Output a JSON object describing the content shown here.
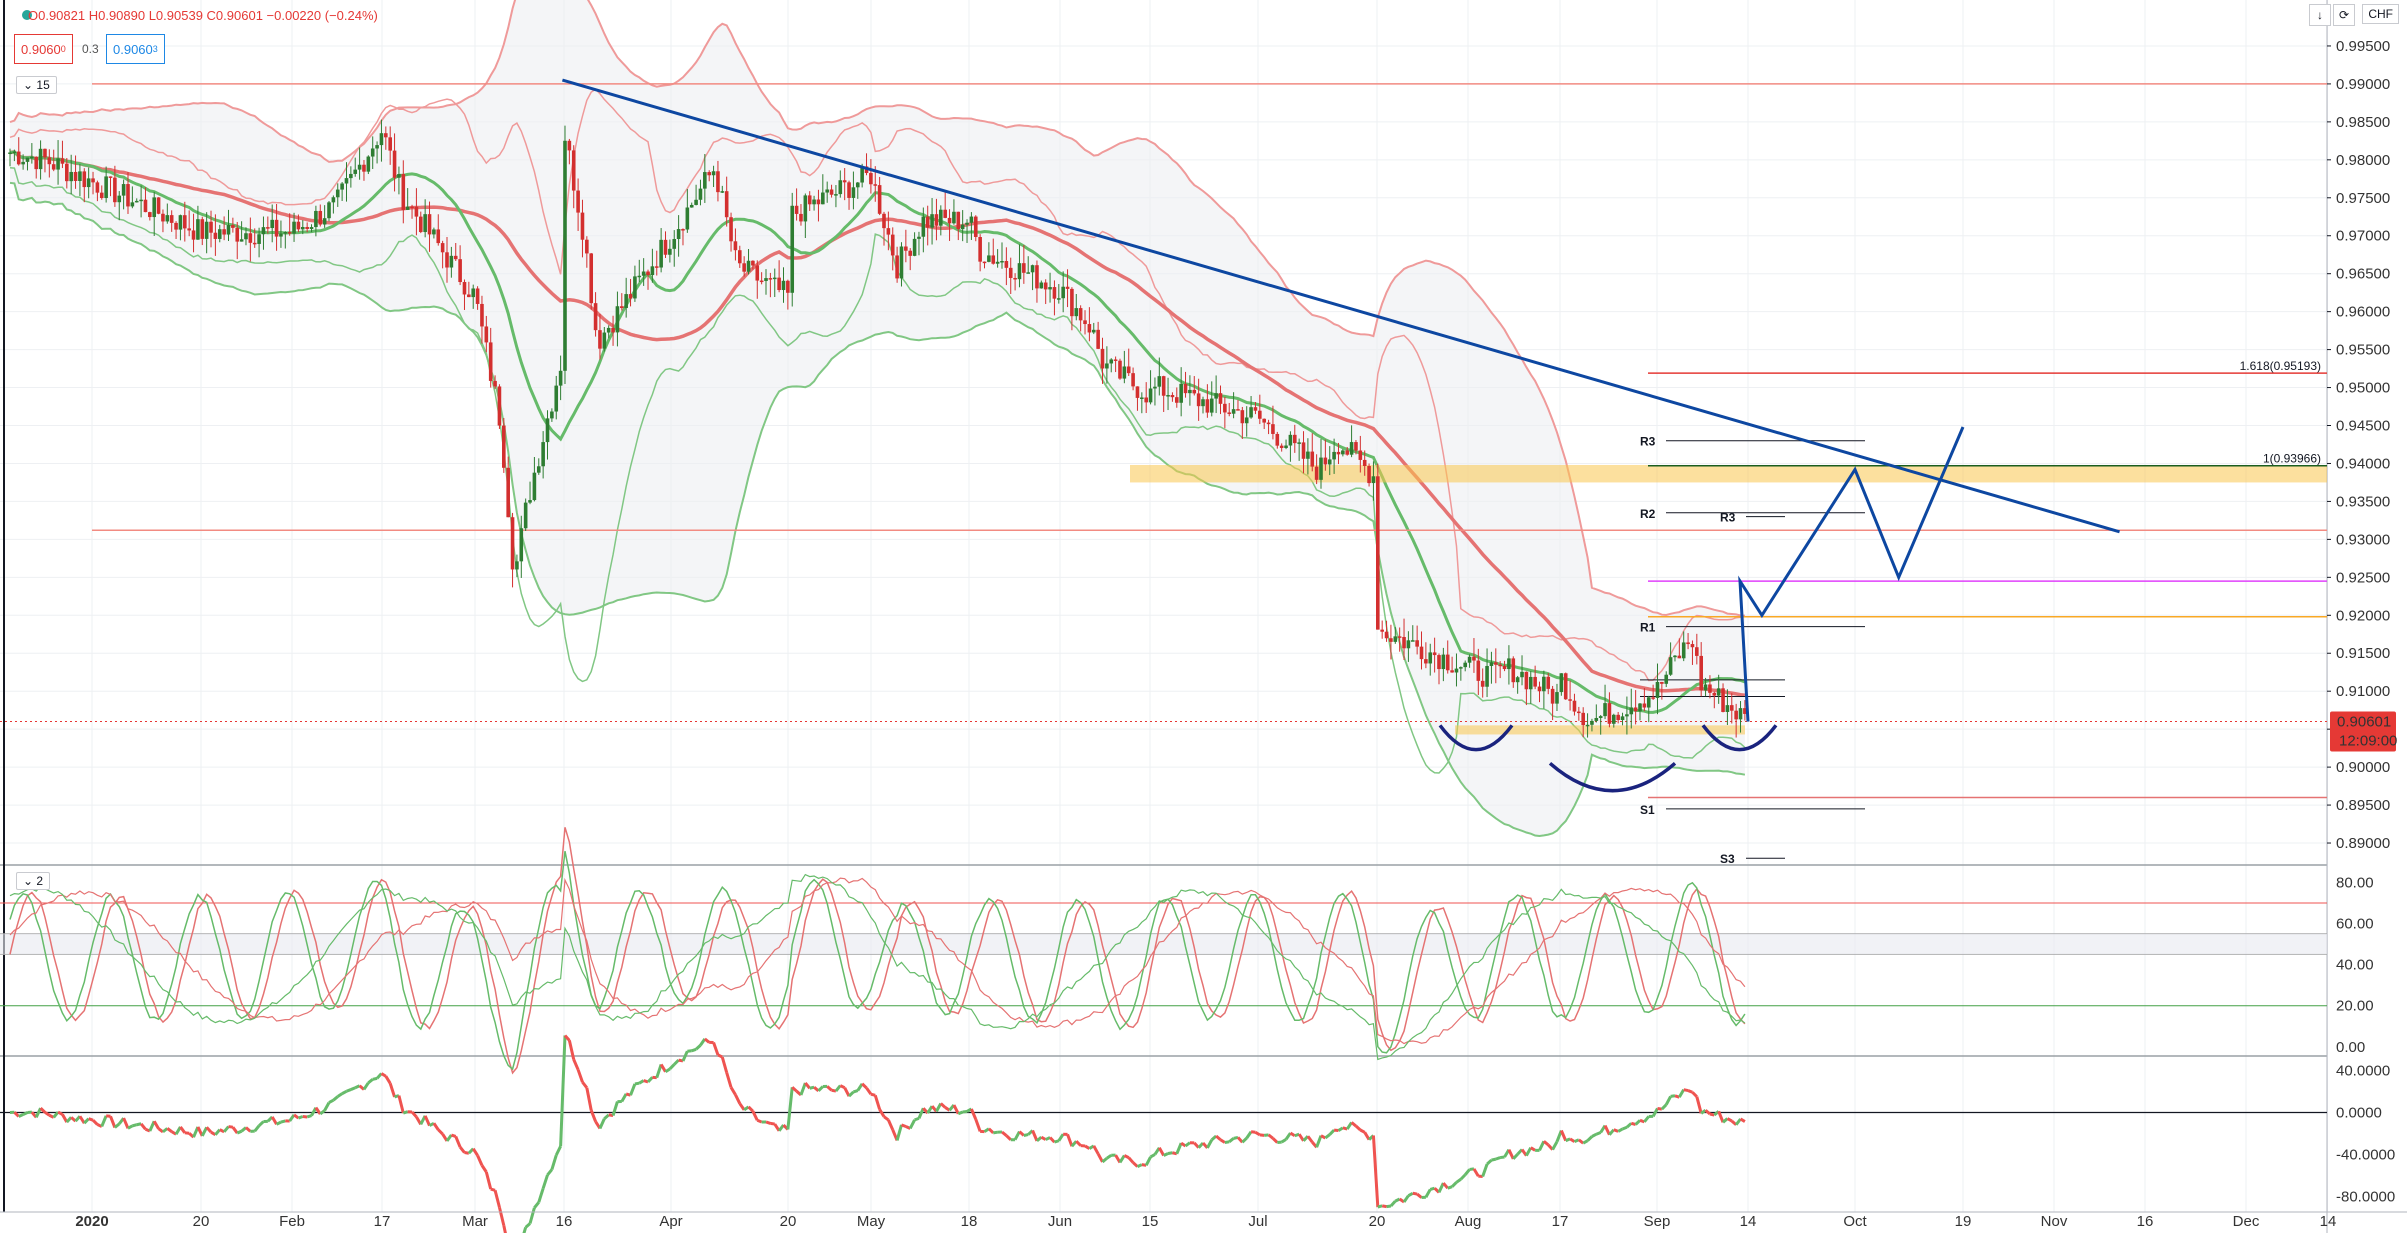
{
  "header": {
    "ohlc_text": "O0.90821  H0.90890  L0.90539  C0.90601  −0.00220 (−0.24%)",
    "sell_price": "0.9060",
    "sell_sup": "0",
    "spread": "0.3",
    "buy_price": "0.9060",
    "buy_sup": "3",
    "pane1_label": "15",
    "pane2_label": "2",
    "currency": "CHF"
  },
  "price_badge": {
    "value": "0.90601",
    "countdown": "12:09:00"
  },
  "chart_data": [
    {
      "type": "candlestick",
      "title": "",
      "yaxis_ticks": [
        "0.99500",
        "0.99000",
        "0.98500",
        "0.98000",
        "0.97500",
        "0.97000",
        "0.96500",
        "0.96000",
        "0.95500",
        "0.95000",
        "0.94500",
        "0.94000",
        "0.93500",
        "0.93000",
        "0.92500",
        "0.92000",
        "0.91500",
        "0.91000",
        "0.90500",
        "0.90000",
        "0.89500",
        "0.89000"
      ],
      "ylim": [
        0.8875,
        1.0
      ],
      "x_ticks": [
        "2020",
        "20",
        "Feb",
        "17",
        "Mar",
        "16",
        "Apr",
        "20",
        "May",
        "18",
        "Jun",
        "15",
        "Jul",
        "20",
        "Aug",
        "17",
        "Sep",
        "14",
        "Oct",
        "19",
        "Nov",
        "16",
        "Dec",
        "14"
      ],
      "close_path": [
        [
          "0",
          0.981
        ],
        [
          "8",
          0.98
        ],
        [
          "20",
          0.9705
        ],
        [
          "Feb",
          0.9705
        ],
        [
          "Feb+10",
          0.974
        ],
        [
          "17",
          0.984
        ],
        [
          "Feb+25",
          0.9755
        ],
        [
          "Mar",
          0.962
        ],
        [
          "Mar+6",
          0.945
        ],
        [
          "Mar+9",
          0.925
        ],
        [
          "Mar+12",
          0.935
        ],
        [
          "16",
          0.955
        ],
        [
          "Mar+20",
          0.985
        ],
        [
          "Mar+25",
          0.97
        ],
        [
          "Mar+28",
          0.956
        ],
        [
          "Apr",
          0.97
        ],
        [
          "Apr+10",
          0.979
        ],
        [
          "Apr+15",
          0.966
        ],
        [
          "20",
          0.962
        ],
        [
          "Apr+25",
          0.972
        ],
        [
          "May",
          0.978
        ],
        [
          "May+6",
          0.966
        ],
        [
          "May+12",
          0.972
        ],
        [
          "18",
          0.972
        ],
        [
          "May+25",
          0.968
        ],
        [
          "Jun",
          0.963
        ],
        [
          "Jun+7",
          0.958
        ],
        [
          "Jun+10",
          0.953
        ],
        [
          "15",
          0.949
        ],
        [
          "Jun+22",
          0.95
        ],
        [
          "Jul",
          0.946
        ],
        [
          "Jul+8",
          0.942
        ],
        [
          "Jul+14",
          0.939
        ],
        [
          "Jul+18",
          0.943
        ],
        [
          "20",
          0.938
        ],
        [
          "Jul+24",
          0.927
        ],
        [
          "Jul+28",
          0.918
        ],
        [
          "Aug",
          0.913
        ],
        [
          "Aug+5",
          0.912
        ],
        [
          "Aug+10",
          0.913
        ],
        [
          "17",
          0.909
        ],
        [
          "Aug+20",
          0.913
        ],
        [
          "Aug+25",
          0.908
        ],
        [
          "Aug+28",
          0.906
        ],
        [
          "Sep",
          0.91
        ],
        [
          "Sep+4",
          0.914
        ],
        [
          "Sep+8",
          0.917
        ],
        [
          "Sep+10",
          0.911
        ],
        [
          "14",
          0.906
        ]
      ],
      "horizontal_levels": [
        {
          "value": 0.99,
          "color": "#f28b82"
        },
        {
          "value": 0.9312,
          "color": "#f28b82"
        },
        {
          "value": 0.9519,
          "color": "#e53935",
          "label": "1.618(0.95193)"
        },
        {
          "value": 0.9397,
          "color": "#1b5e20",
          "label": "1(0.93966)"
        },
        {
          "value": 0.9245,
          "color": "#e040fb"
        },
        {
          "value": 0.9198,
          "color": "#f9a825"
        },
        {
          "value": 0.896,
          "color": "#e57373"
        }
      ],
      "pivot_labels": [
        {
          "label": "R3",
          "value": 0.943
        },
        {
          "label": "R2",
          "value": 0.9335
        },
        {
          "label": "R3",
          "value": 0.933
        },
        {
          "label": "R1",
          "value": 0.9185
        },
        {
          "label": "S1",
          "value": 0.8945
        },
        {
          "label": "S3",
          "value": 0.888
        }
      ],
      "zones": [
        {
          "from": 0.9375,
          "to": 0.9398,
          "color": "#f9c74f"
        },
        {
          "from": 0.9043,
          "to": 0.9055,
          "color": "#f9c74f"
        }
      ],
      "trendline": {
        "from": [
          "Mar+20",
          0.9905
        ],
        "to": [
          "Nov+15",
          0.931
        ],
        "color": "#0d47a1"
      },
      "projection_path": [
        [
          "14",
          0.906
        ],
        [
          "Sep+19",
          0.9245
        ],
        [
          "Sep+24",
          0.92
        ],
        [
          "Oct",
          0.9392
        ],
        [
          "Oct+10",
          0.925
        ],
        [
          "19",
          0.9448
        ]
      ],
      "current_price": 0.90601
    },
    {
      "type": "line",
      "title": "",
      "yaxis_ticks": [
        "80.00",
        "60.00",
        "40.00",
        "20.00",
        "0.00"
      ],
      "ylim": [
        -3,
        87
      ],
      "levels": [
        70,
        55,
        45,
        20
      ]
    },
    {
      "type": "line",
      "title": "",
      "yaxis_ticks": [
        "40.0000",
        "0.0000",
        "-40.0000",
        "-80.0000"
      ],
      "ylim": [
        -95,
        52
      ],
      "zero_line": 0
    }
  ]
}
